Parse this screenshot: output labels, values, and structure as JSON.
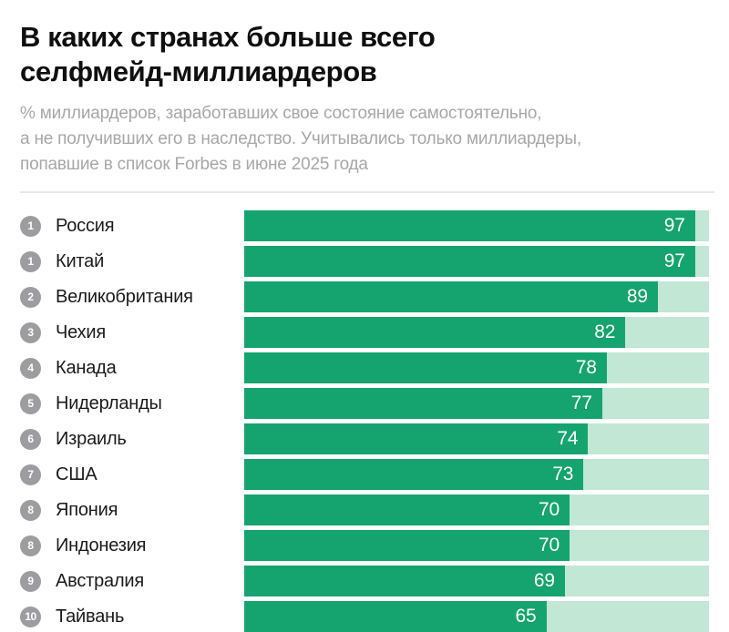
{
  "header": {
    "title_lines": [
      "В каких странах больше всего",
      "селфмейд-миллиардеров"
    ],
    "subtitle_lines": [
      "% миллиардеров, заработавших свое состояние самостоятельно,",
      "а не получивших его в наследство. Учитывались только миллиардеры,",
      "попавшие в список Forbes в июне 2025 года"
    ]
  },
  "colors": {
    "bar": "#15a46f",
    "track": "#c2e7d4",
    "badge": "#9d9da1",
    "title": "#0f0f0f",
    "subtitle": "#a7a7a7",
    "divider": "#e8e8e8",
    "value_text": "#ffffff"
  },
  "chart_data": {
    "type": "bar",
    "orientation": "horizontal",
    "unit": "%",
    "value_range": [
      0,
      100
    ],
    "title": "В каких странах больше всего селфмейд-миллиардеров",
    "subtitle": "% миллиардеров, заработавших свое состояние самостоятельно, а не получивших его в наследство. Учитывались только миллиардеры, попавшие в список Forbes в июне 2025 года",
    "categories": [
      "Россия",
      "Китай",
      "Великобритания",
      "Чехия",
      "Канада",
      "Нидерланды",
      "Израиль",
      "США",
      "Япония",
      "Индонезия",
      "Австралия",
      "Тайвань"
    ],
    "values": [
      97,
      97,
      89,
      82,
      78,
      77,
      74,
      73,
      70,
      70,
      69,
      65
    ],
    "ranks": [
      "1",
      "1",
      "2",
      "3",
      "4",
      "5",
      "6",
      "7",
      "8",
      "8",
      "9",
      "10"
    ],
    "rows": [
      {
        "rank": "1",
        "country": "Россия",
        "value": 97
      },
      {
        "rank": "1",
        "country": "Китай",
        "value": 97
      },
      {
        "rank": "2",
        "country": "Великобритания",
        "value": 89
      },
      {
        "rank": "3",
        "country": "Чехия",
        "value": 82
      },
      {
        "rank": "4",
        "country": "Канада",
        "value": 78
      },
      {
        "rank": "5",
        "country": "Нидерланды",
        "value": 77
      },
      {
        "rank": "6",
        "country": "Израиль",
        "value": 74
      },
      {
        "rank": "7",
        "country": "США",
        "value": 73
      },
      {
        "rank": "8",
        "country": "Япония",
        "value": 70
      },
      {
        "rank": "8",
        "country": "Индонезия",
        "value": 70
      },
      {
        "rank": "9",
        "country": "Австралия",
        "value": 69
      },
      {
        "rank": "10",
        "country": "Тайвань",
        "value": 65
      }
    ]
  }
}
